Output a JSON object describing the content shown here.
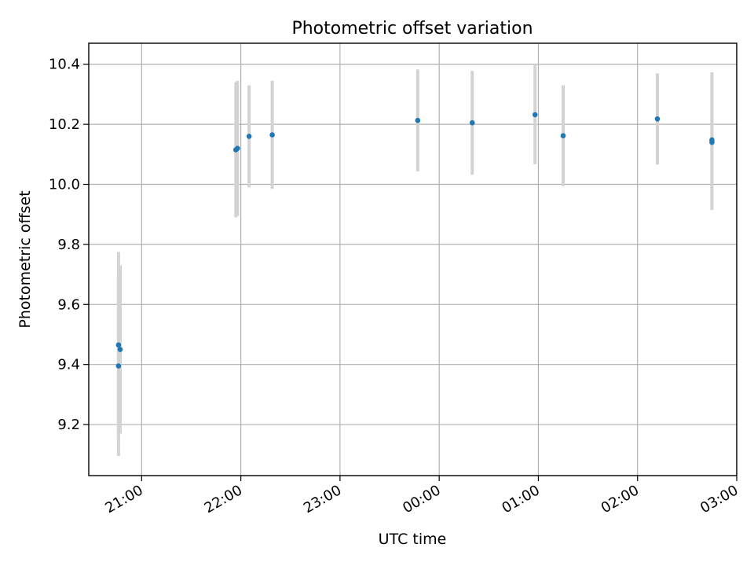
{
  "chart_data": {
    "type": "scatter",
    "title": "Photometric offset variation",
    "xlabel": "UTC time",
    "ylabel": "Photometric offset",
    "x_axis": {
      "type": "time",
      "range": [
        "2023-01-01T20:28:00",
        "2023-01-02T03:00:00"
      ],
      "ticks": [
        {
          "t": "2023-01-01T21:00:00",
          "label": "21:00"
        },
        {
          "t": "2023-01-01T22:00:00",
          "label": "22:00"
        },
        {
          "t": "2023-01-01T23:00:00",
          "label": "23:00"
        },
        {
          "t": "2023-01-02T00:00:00",
          "label": "00:00"
        },
        {
          "t": "2023-01-02T01:00:00",
          "label": "01:00"
        },
        {
          "t": "2023-01-02T02:00:00",
          "label": "02:00"
        },
        {
          "t": "2023-01-02T03:00:00",
          "label": "03:00"
        }
      ]
    },
    "y_axis": {
      "range": [
        9.03,
        10.47
      ],
      "ticks": [
        9.2,
        9.4,
        9.6,
        9.8,
        10.0,
        10.2,
        10.4
      ],
      "tick_labels": [
        "9.2",
        "9.4",
        "9.6",
        "9.8",
        "10.0",
        "10.2",
        "10.4"
      ]
    },
    "grid": true,
    "colors": {
      "point": "#1f77b4",
      "error_bar": "#d3d3d3",
      "grid": "#b0b0b0"
    },
    "points": [
      {
        "t": "2023-01-01T20:46:00",
        "y": 9.465,
        "err": 0.31
      },
      {
        "t": "2023-01-01T20:46:00",
        "y": 9.395,
        "err": 0.3
      },
      {
        "t": "2023-01-01T20:47:00",
        "y": 9.45,
        "err": 0.28
      },
      {
        "t": "2023-01-01T21:57:00",
        "y": 10.115,
        "err": 0.225
      },
      {
        "t": "2023-01-01T21:58:00",
        "y": 10.12,
        "err": 0.225
      },
      {
        "t": "2023-01-01T22:05:00",
        "y": 10.16,
        "err": 0.17
      },
      {
        "t": "2023-01-01T22:19:00",
        "y": 10.165,
        "err": 0.18
      },
      {
        "t": "2023-01-01T23:47:00",
        "y": 10.213,
        "err": 0.17
      },
      {
        "t": "2023-01-02T00:20:00",
        "y": 10.205,
        "err": 0.173
      },
      {
        "t": "2023-01-02T00:58:00",
        "y": 10.232,
        "err": 0.165
      },
      {
        "t": "2023-01-02T01:15:00",
        "y": 10.162,
        "err": 0.168
      },
      {
        "t": "2023-01-02T02:12:00",
        "y": 10.218,
        "err": 0.152
      },
      {
        "t": "2023-01-02T02:45:00",
        "y": 10.14,
        "err": 0.225
      },
      {
        "t": "2023-01-02T02:45:00",
        "y": 10.148,
        "err": 0.225
      }
    ]
  }
}
